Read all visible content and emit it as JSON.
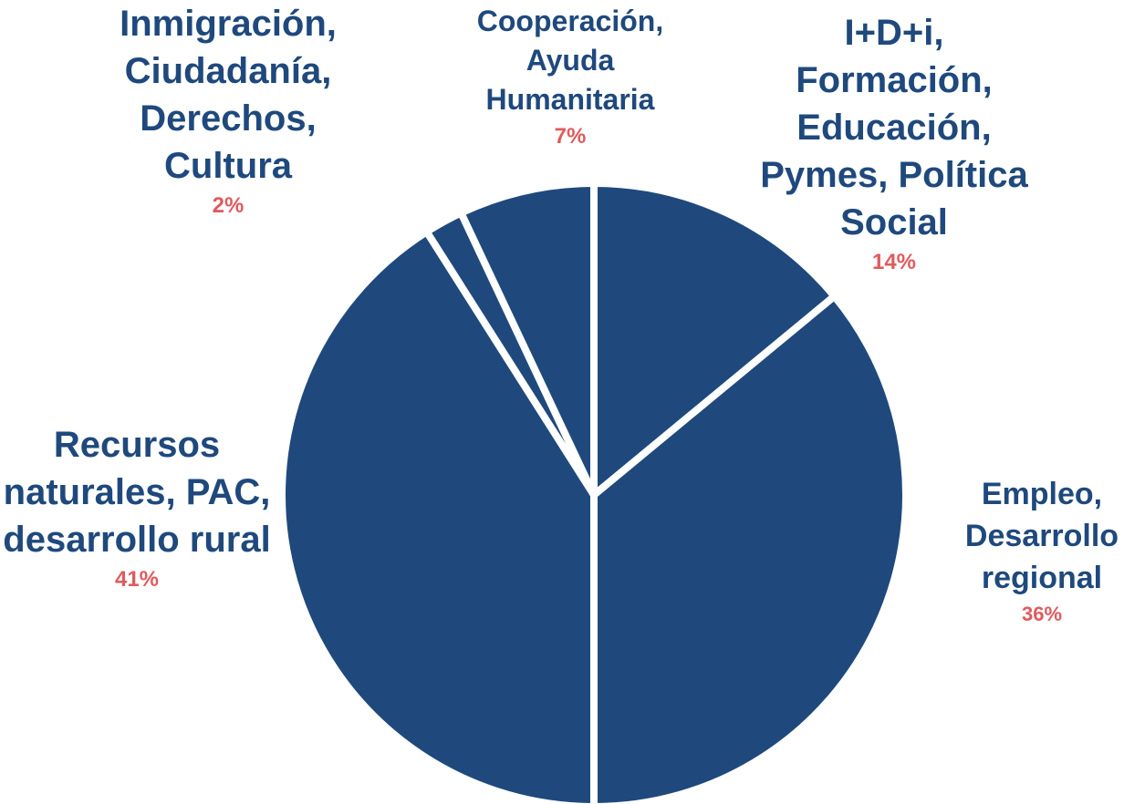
{
  "chart_data": {
    "type": "pie",
    "colors": {
      "slice": "#1f497d",
      "separator": "#ffffff",
      "category_text": "#1f497d",
      "percent_text": "#e05a5d"
    },
    "slices": [
      {
        "label": "I+D+i,\nFormación,\nEducación,\nPymes, Política\nSocial",
        "value": 14,
        "percent_label": "14%"
      },
      {
        "label": "Empleo,\nDesarrollo\nregional",
        "value": 36,
        "percent_label": "36%"
      },
      {
        "label": "Recursos\nnaturales, PAC,\ndesarrollo rural",
        "value": 41,
        "percent_label": "41%"
      },
      {
        "label": "Inmigración,\nCiudadanía,\nDerechos,\nCultura",
        "value": 2,
        "percent_label": "2%"
      },
      {
        "label": "Cooperación,\nAyuda\nHumanitaria",
        "value": 7,
        "percent_label": "7%"
      }
    ]
  }
}
